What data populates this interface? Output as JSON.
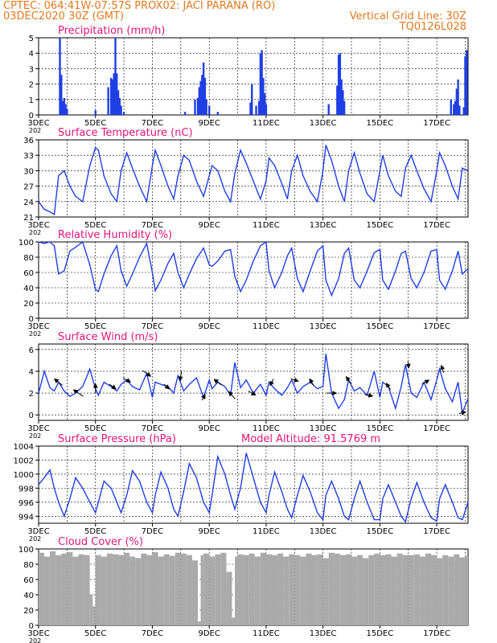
{
  "header": {
    "line1": "CPTEC:    064:41W-07:57S   PROX02: JACI PARANA (RO)",
    "line2": "03DEC2020 30Z (GMT)",
    "grid_note": "Vertical Grid Line: 30Z",
    "code": "TQ0126L028"
  },
  "x_axis": {
    "start_day": 3,
    "end_day": 18.1,
    "ticks": [
      {
        "day": 3,
        "label": "3DEC"
      },
      {
        "day": 5,
        "label": "5DEC"
      },
      {
        "day": 7,
        "label": "7DEC"
      },
      {
        "day": 9,
        "label": "9DEC"
      },
      {
        "day": 11,
        "label": "11DEC"
      },
      {
        "day": 13,
        "label": "13DEC"
      },
      {
        "day": 15,
        "label": "15DEC"
      },
      {
        "day": 17,
        "label": "17DEC"
      }
    ],
    "sub_label": "202"
  },
  "extra_label": "Model Altitude: 91.5769 m",
  "colors": {
    "header": "#e07a1f",
    "title": "#e0157a",
    "series": "#1f3fe6",
    "cloud": "#aaaaaa"
  },
  "chart_data": [
    {
      "type": "bar",
      "title": "Precipitation (mm/h)",
      "ylim": [
        0,
        5
      ],
      "yticks": [
        0,
        1,
        2,
        3,
        4,
        5
      ],
      "x": [
        3.75,
        3.8,
        3.85,
        3.9,
        3.95,
        4.0,
        5.0,
        5.45,
        5.55,
        5.6,
        5.65,
        5.7,
        5.75,
        5.8,
        5.85,
        5.9,
        6.0,
        8.15,
        8.5,
        8.6,
        8.65,
        8.7,
        8.75,
        8.8,
        8.85,
        8.9,
        9.0,
        9.3,
        10.45,
        10.5,
        10.65,
        10.75,
        10.8,
        10.85,
        10.9,
        10.95,
        11.0,
        13.2,
        13.5,
        13.55,
        13.6,
        13.65,
        13.7,
        13.75,
        17.5,
        17.6,
        17.65,
        17.7,
        17.75,
        17.8,
        17.95,
        18.0,
        18.05
      ],
      "values": [
        5.0,
        2.6,
        0.9,
        1.1,
        0.7,
        0.4,
        0.3,
        1.8,
        2.4,
        2.3,
        2.7,
        5.0,
        2.7,
        1.6,
        1.1,
        0.6,
        0.2,
        0.2,
        1.0,
        1.1,
        1.8,
        2.2,
        2.6,
        3.4,
        2.4,
        1.0,
        0.6,
        0.2,
        0.8,
        2.0,
        0.6,
        0.9,
        4.0,
        4.2,
        2.4,
        1.4,
        0.7,
        0.7,
        1.9,
        3.9,
        4.0,
        2.3,
        1.6,
        0.9,
        1.0,
        0.7,
        0.9,
        1.7,
        2.3,
        0.6,
        0.5,
        3.8,
        4.2
      ]
    },
    {
      "type": "line",
      "title": "Surface Temperature (nC)",
      "ylim": [
        21,
        36
      ],
      "yticks": [
        21,
        24,
        27,
        30,
        33,
        36
      ],
      "x": [
        3.0,
        3.2,
        3.4,
        3.55,
        3.7,
        3.9,
        4.1,
        4.3,
        4.55,
        4.8,
        5.0,
        5.1,
        5.3,
        5.55,
        5.75,
        5.9,
        6.1,
        6.3,
        6.55,
        6.8,
        7.0,
        7.1,
        7.3,
        7.55,
        7.75,
        7.9,
        8.1,
        8.3,
        8.55,
        8.8,
        9.0,
        9.1,
        9.3,
        9.55,
        9.75,
        9.9,
        10.1,
        10.3,
        10.55,
        10.8,
        11.0,
        11.1,
        11.3,
        11.55,
        11.75,
        11.9,
        12.1,
        12.3,
        12.55,
        12.8,
        13.0,
        13.1,
        13.3,
        13.55,
        13.75,
        13.9,
        14.1,
        14.3,
        14.55,
        14.8,
        15.0,
        15.1,
        15.3,
        15.55,
        15.75,
        15.9,
        16.1,
        16.3,
        16.55,
        16.8,
        17.0,
        17.1,
        17.3,
        17.55,
        17.75,
        17.9,
        18.1
      ],
      "values": [
        24.0,
        22.5,
        22.0,
        21.5,
        29.0,
        30.0,
        27.0,
        25.0,
        24.0,
        31.0,
        34.5,
        34.0,
        29.0,
        25.5,
        24.0,
        30.0,
        33.5,
        30.5,
        27.0,
        24.0,
        31.0,
        34.0,
        31.0,
        27.0,
        24.5,
        29.0,
        33.0,
        32.0,
        28.0,
        25.0,
        29.0,
        31.0,
        30.0,
        26.0,
        24.0,
        29.5,
        34.0,
        31.5,
        28.0,
        24.5,
        28.0,
        32.5,
        31.0,
        27.5,
        24.5,
        30.0,
        33.0,
        29.0,
        26.0,
        24.0,
        30.0,
        35.0,
        32.0,
        27.0,
        24.0,
        30.0,
        33.5,
        29.5,
        25.5,
        24.0,
        30.0,
        33.0,
        29.0,
        26.0,
        25.0,
        30.5,
        33.0,
        30.0,
        26.5,
        24.0,
        30.0,
        33.5,
        31.0,
        27.0,
        24.5,
        30.5,
        30.0
      ]
    },
    {
      "type": "line",
      "title": "Relative Humidity (%)",
      "ylim": [
        0,
        100
      ],
      "yticks": [
        0,
        20,
        40,
        60,
        80,
        100
      ],
      "x": [
        3.0,
        3.2,
        3.4,
        3.55,
        3.7,
        3.9,
        4.1,
        4.3,
        4.55,
        4.8,
        5.0,
        5.1,
        5.3,
        5.55,
        5.75,
        5.9,
        6.1,
        6.3,
        6.55,
        6.8,
        7.0,
        7.1,
        7.3,
        7.55,
        7.75,
        7.9,
        8.1,
        8.3,
        8.55,
        8.8,
        9.0,
        9.1,
        9.3,
        9.55,
        9.75,
        9.9,
        10.1,
        10.3,
        10.55,
        10.8,
        11.0,
        11.1,
        11.3,
        11.55,
        11.75,
        11.9,
        12.1,
        12.3,
        12.55,
        12.8,
        13.0,
        13.1,
        13.3,
        13.55,
        13.75,
        13.9,
        14.1,
        14.3,
        14.55,
        14.8,
        15.0,
        15.1,
        15.3,
        15.55,
        15.75,
        15.9,
        16.1,
        16.3,
        16.55,
        16.8,
        17.0,
        17.1,
        17.3,
        17.55,
        17.75,
        17.9,
        18.1
      ],
      "values": [
        100,
        98,
        100,
        95,
        58,
        62,
        88,
        93,
        100,
        70,
        38,
        35,
        58,
        82,
        95,
        62,
        42,
        58,
        80,
        98,
        60,
        36,
        50,
        72,
        85,
        60,
        40,
        58,
        78,
        92,
        70,
        68,
        75,
        88,
        90,
        55,
        35,
        50,
        75,
        95,
        100,
        62,
        40,
        60,
        82,
        92,
        52,
        35,
        62,
        88,
        95,
        50,
        30,
        52,
        85,
        92,
        50,
        40,
        62,
        86,
        90,
        50,
        38,
        62,
        85,
        88,
        52,
        40,
        60,
        88,
        90,
        50,
        38,
        62,
        88,
        58,
        65
      ]
    },
    {
      "type": "line",
      "title": "Surface Wind (m/s)",
      "ylim": [
        -0.5,
        6.5
      ],
      "yticks": [
        0,
        2,
        4,
        6
      ],
      "x": [
        3.0,
        3.2,
        3.4,
        3.55,
        3.7,
        3.9,
        4.1,
        4.3,
        4.55,
        4.8,
        5.0,
        5.1,
        5.3,
        5.55,
        5.75,
        5.9,
        6.1,
        6.3,
        6.55,
        6.8,
        7.0,
        7.1,
        7.3,
        7.55,
        7.75,
        7.9,
        8.1,
        8.3,
        8.55,
        8.8,
        9.0,
        9.1,
        9.3,
        9.55,
        9.75,
        9.9,
        10.1,
        10.3,
        10.55,
        10.8,
        11.0,
        11.1,
        11.3,
        11.55,
        11.75,
        11.9,
        12.1,
        12.3,
        12.55,
        12.8,
        13.0,
        13.1,
        13.3,
        13.55,
        13.75,
        13.9,
        14.1,
        14.3,
        14.55,
        14.8,
        15.0,
        15.1,
        15.3,
        15.55,
        15.75,
        15.9,
        16.1,
        16.3,
        16.55,
        16.8,
        17.0,
        17.1,
        17.3,
        17.55,
        17.75,
        17.9,
        18.1
      ],
      "values": [
        2.0,
        4.0,
        2.5,
        2.2,
        3.0,
        2.2,
        1.7,
        2.0,
        2.6,
        4.2,
        2.4,
        1.8,
        3.0,
        2.6,
        2.2,
        2.8,
        3.2,
        2.6,
        2.3,
        3.8,
        1.6,
        3.0,
        2.8,
        2.6,
        2.0,
        3.6,
        2.2,
        2.8,
        3.4,
        1.6,
        3.2,
        2.4,
        3.0,
        2.6,
        1.8,
        4.8,
        2.5,
        3.2,
        2.0,
        2.8,
        1.8,
        3.0,
        2.4,
        1.8,
        2.5,
        3.2,
        2.0,
        2.6,
        3.0,
        2.4,
        2.6,
        5.6,
        2.0,
        0.6,
        1.4,
        3.2,
        2.2,
        2.5,
        1.8,
        4.0,
        1.6,
        3.0,
        2.6,
        0.6,
        2.6,
        4.6,
        2.0,
        1.6,
        3.0,
        1.4,
        3.2,
        4.2,
        2.4,
        1.2,
        3.0,
        0.2,
        1.5
      ],
      "arrows": {
        "x": [
          3.7,
          4.4,
          5.0,
          5.6,
          6.1,
          6.8,
          7.5,
          8.0,
          8.8,
          9.3,
          9.8,
          10.5,
          11.2,
          12.0,
          12.6,
          13.3,
          13.9,
          14.6,
          15.3,
          16.0,
          16.6,
          17.2,
          17.9
        ],
        "u": [
          -1.0,
          -1.2,
          0.0,
          0.8,
          0.9,
          1.0,
          0.6,
          -0.2,
          0.4,
          -0.9,
          -0.8,
          0.9,
          -0.4,
          0.9,
          -0.5,
          1.2,
          -0.6,
          1.0,
          -0.5,
          0.1,
          0.9,
          -0.3,
          0.8
        ],
        "v": [
          0.8,
          0.8,
          1.2,
          -0.6,
          -0.5,
          -0.7,
          -0.6,
          -1.2,
          0.7,
          0.7,
          0.9,
          -0.5,
          -0.8,
          -0.3,
          0.8,
          0.0,
          0.8,
          -0.2,
          0.8,
          -0.8,
          0.5,
          0.9,
          0.2
        ]
      }
    },
    {
      "type": "line",
      "title": "Surface Pressure (hPa)",
      "ylim": [
        993,
        1004
      ],
      "yticks": [
        994,
        996,
        998,
        1000,
        1002,
        1004
      ],
      "x": [
        3.0,
        3.2,
        3.4,
        3.55,
        3.7,
        3.9,
        4.1,
        4.3,
        4.55,
        4.8,
        5.0,
        5.1,
        5.3,
        5.55,
        5.75,
        5.9,
        6.1,
        6.3,
        6.55,
        6.8,
        7.0,
        7.1,
        7.3,
        7.55,
        7.75,
        7.9,
        8.1,
        8.3,
        8.55,
        8.8,
        9.0,
        9.1,
        9.3,
        9.55,
        9.75,
        9.9,
        10.1,
        10.3,
        10.55,
        10.8,
        11.0,
        11.1,
        11.3,
        11.55,
        11.75,
        11.9,
        12.1,
        12.3,
        12.55,
        12.8,
        13.0,
        13.1,
        13.3,
        13.55,
        13.75,
        13.9,
        14.1,
        14.3,
        14.55,
        14.8,
        15.0,
        15.1,
        15.3,
        15.55,
        15.75,
        15.9,
        16.1,
        16.3,
        16.55,
        16.8,
        17.0,
        17.1,
        17.3,
        17.55,
        17.75,
        17.9,
        18.1
      ],
      "values": [
        998.5,
        999.5,
        1000.6,
        998.0,
        996.0,
        994.0,
        996.5,
        999.5,
        998.0,
        996.0,
        994.5,
        996.0,
        999.0,
        998.0,
        996.0,
        994.5,
        997.0,
        1000.5,
        999.0,
        996.0,
        994.5,
        997.0,
        1000.3,
        998.0,
        995.0,
        994.0,
        997.5,
        1001.5,
        999.5,
        996.0,
        994.5,
        997.0,
        1002.5,
        1000.0,
        997.0,
        995.0,
        998.0,
        1003.0,
        999.5,
        996.0,
        994.5,
        997.0,
        1000.3,
        997.5,
        995.0,
        993.8,
        997.0,
        999.8,
        997.5,
        994.5,
        993.5,
        997.0,
        999.0,
        996.5,
        994.0,
        993.5,
        996.5,
        999.0,
        996.0,
        993.5,
        993.5,
        996.5,
        998.5,
        996.0,
        994.0,
        993.2,
        996.5,
        998.8,
        996.0,
        993.8,
        993.3,
        996.5,
        998.5,
        996.0,
        993.8,
        993.5,
        996.0
      ]
    },
    {
      "type": "bar",
      "title": "Cloud Cover (%)",
      "ylim": [
        0,
        100
      ],
      "yticks": [
        0,
        20,
        40,
        60,
        80,
        100
      ],
      "x": [
        3.0,
        3.2,
        3.4,
        3.6,
        3.8,
        4.0,
        4.2,
        4.4,
        4.6,
        4.8,
        4.9,
        5.0,
        5.2,
        5.4,
        5.6,
        5.8,
        6.0,
        6.2,
        6.4,
        6.6,
        6.8,
        7.0,
        7.2,
        7.4,
        7.6,
        7.8,
        8.0,
        8.2,
        8.4,
        8.6,
        8.7,
        8.8,
        9.0,
        9.2,
        9.4,
        9.6,
        9.8,
        9.9,
        10.0,
        10.2,
        10.4,
        10.6,
        10.8,
        11.0,
        11.2,
        11.4,
        11.6,
        11.8,
        12.0,
        12.2,
        12.4,
        12.6,
        12.8,
        13.0,
        13.2,
        13.4,
        13.6,
        13.8,
        14.0,
        14.2,
        14.4,
        14.6,
        14.8,
        15.0,
        15.2,
        15.4,
        15.6,
        15.8,
        16.0,
        16.2,
        16.4,
        16.6,
        16.8,
        17.0,
        17.2,
        17.4,
        17.6,
        17.8,
        18.0
      ],
      "values": [
        95,
        90,
        97,
        92,
        94,
        96,
        90,
        93,
        92,
        40,
        25,
        92,
        90,
        94,
        93,
        92,
        95,
        90,
        88,
        94,
        92,
        96,
        90,
        93,
        91,
        95,
        94,
        92,
        85,
        5,
        92,
        94,
        90,
        93,
        95,
        70,
        10,
        90,
        93,
        92,
        94,
        90,
        95,
        93,
        92,
        94,
        90,
        93,
        92,
        90,
        94,
        92,
        93,
        88,
        95,
        94,
        92,
        93,
        90,
        92,
        88,
        92,
        94,
        92,
        93,
        90,
        94,
        92,
        92,
        93,
        90,
        94,
        92,
        88,
        92,
        90,
        93,
        89,
        91
      ]
    }
  ]
}
